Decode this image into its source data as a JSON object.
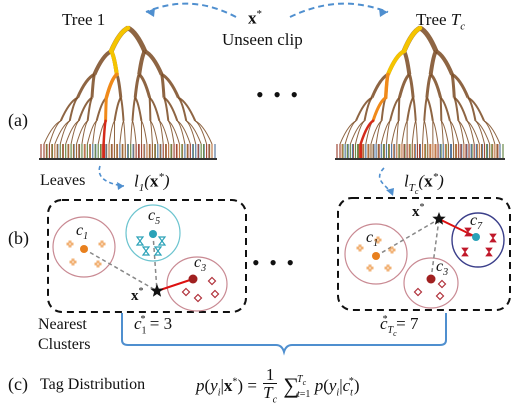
{
  "figure": {
    "tree_left_label": "Tree 1",
    "tree_right_label_prefix": "Tree ",
    "tree_right_label_var": "T",
    "tree_right_label_sub": "c",
    "query_label": "x",
    "query_sup": "*",
    "unseen_label": "Unseen clip",
    "ellipsis": "• • •",
    "panel_a": "(a)",
    "panel_b": "(b)",
    "panel_c": "(c)",
    "leaves_label": "Leaves",
    "leaf_left": "l₁(x*)",
    "leaf_right": "l_Tc(x*)",
    "nearest_line1": "Nearest",
    "nearest_line2": "Clusters",
    "c_left_result": "c₁* = 3",
    "c_right_result": "c*_Tc = 7",
    "tag_distribution_label": "Tag Distribution",
    "formula": "p(yᵢ|x*) = (1/T_c) Σ_{t=1}^{T_c} p(yᵢ|c_t*)"
  },
  "clusters_left": [
    {
      "id": "c1",
      "color": "#e8801e",
      "ring": "#c98a93",
      "marker": "cross"
    },
    {
      "id": "c5",
      "color": "#2aa2b8",
      "ring": "#6cc4cf",
      "marker": "bowtie"
    },
    {
      "id": "c3",
      "color": "#a02020",
      "ring": "#c98a93",
      "marker": "diamond"
    }
  ],
  "clusters_right": [
    {
      "id": "c1",
      "color": "#e8801e",
      "ring": "#c98a93",
      "marker": "cross"
    },
    {
      "id": "c7",
      "color": "#2aa2b8",
      "ring": "#3b3f8a",
      "marker": "bowtie-red"
    },
    {
      "id": "c3",
      "color": "#a02020",
      "ring": "#c98a93",
      "marker": "diamond"
    }
  ],
  "colors": {
    "tree_brown": "#7a4a22",
    "path_yellow": "#f5c400",
    "path_orange": "#f08a1a",
    "path_red": "#d42a1a",
    "dashed_blue": "#4f8fcf",
    "bracket_blue": "#4f8fcf"
  }
}
